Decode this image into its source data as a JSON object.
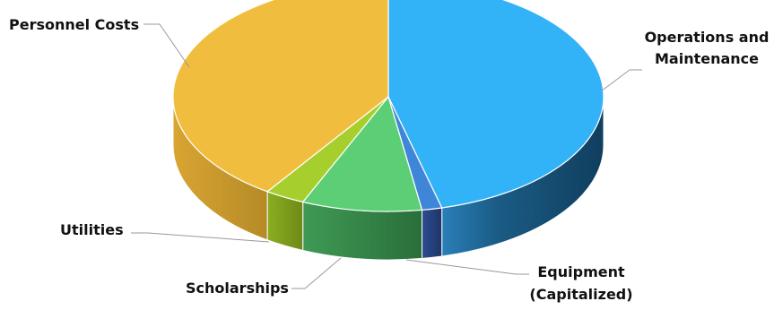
{
  "chart_data": {
    "type": "pie",
    "style": "3d",
    "categories": [
      "Operations and Maintenance",
      "Equipment (Capitalized)",
      "Scholarships",
      "Utilities",
      "Personnel Costs"
    ],
    "values": [
      46,
      1.5,
      9,
      3,
      40.5
    ],
    "label_lines": {
      "operations": [
        "Operations and",
        "Maintenance"
      ],
      "equipment": [
        "Equipment",
        "(Capitalized)"
      ],
      "scholarships": [
        "Scholarships"
      ],
      "utilities": [
        "Utilities"
      ],
      "personnel": [
        "Personnel Costs"
      ]
    },
    "colors": [
      "#33B3F7",
      "#3F86D8",
      "#5CCF76",
      "#A6CF2E",
      "#F0BD3E"
    ],
    "side_colors": [
      "#1A5B84",
      "#243F7A",
      "#2E7E42",
      "#6E8A17",
      "#C4942A"
    ],
    "legend": "none"
  }
}
